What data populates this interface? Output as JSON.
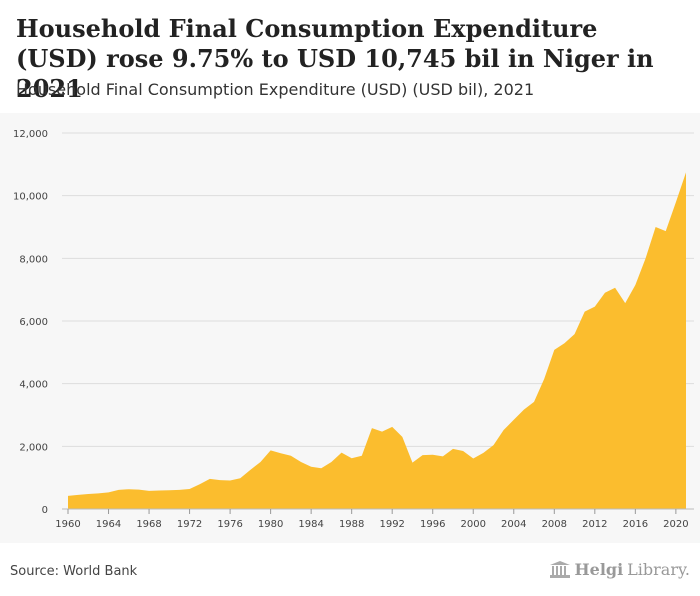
{
  "title": "Household Final Consumption Expenditure (USD) rose 9.75% to USD 10,745 bil in Niger in 2021",
  "subtitle": "Household Final Consumption Expenditure (USD) (USD bil), 2021",
  "source": "Source: World Bank",
  "logo": {
    "part1": "Helgi",
    "part2": "Library."
  },
  "colors": {
    "area": "#fbbd2e",
    "grid": "#dddddd",
    "background": "#f7f7f7"
  },
  "chart_data": {
    "type": "area",
    "x": [
      1960,
      1961,
      1962,
      1963,
      1964,
      1965,
      1966,
      1967,
      1968,
      1969,
      1970,
      1971,
      1972,
      1973,
      1974,
      1975,
      1976,
      1977,
      1978,
      1979,
      1980,
      1981,
      1982,
      1983,
      1984,
      1985,
      1986,
      1987,
      1988,
      1989,
      1990,
      1991,
      1992,
      1993,
      1994,
      1995,
      1996,
      1997,
      1998,
      1999,
      2000,
      2001,
      2002,
      2003,
      2004,
      2005,
      2006,
      2007,
      2008,
      2009,
      2010,
      2011,
      2012,
      2013,
      2014,
      2015,
      2016,
      2017,
      2018,
      2019,
      2020,
      2021
    ],
    "values": [
      420,
      450,
      480,
      500,
      530,
      610,
      630,
      620,
      580,
      590,
      600,
      610,
      640,
      790,
      960,
      920,
      910,
      980,
      1250,
      1500,
      1870,
      1780,
      1700,
      1500,
      1350,
      1300,
      1500,
      1800,
      1620,
      1700,
      2580,
      2470,
      2620,
      2300,
      1480,
      1720,
      1730,
      1680,
      1920,
      1850,
      1610,
      1790,
      2040,
      2520,
      2850,
      3170,
      3420,
      4150,
      5080,
      5290,
      5580,
      6300,
      6460,
      6900,
      7060,
      6570,
      7150,
      7990,
      9000,
      8870,
      9790,
      10745
    ],
    "ylim": [
      0,
      12000
    ],
    "yticks": [
      "0",
      "2,000",
      "4,000",
      "6,000",
      "8,000",
      "10,000",
      "12,000"
    ],
    "xticks": [
      "1960",
      "1964",
      "1968",
      "1972",
      "1976",
      "1980",
      "1984",
      "1988",
      "1992",
      "1996",
      "2000",
      "2004",
      "2008",
      "2012",
      "2016",
      "2020"
    ],
    "grid": true
  }
}
